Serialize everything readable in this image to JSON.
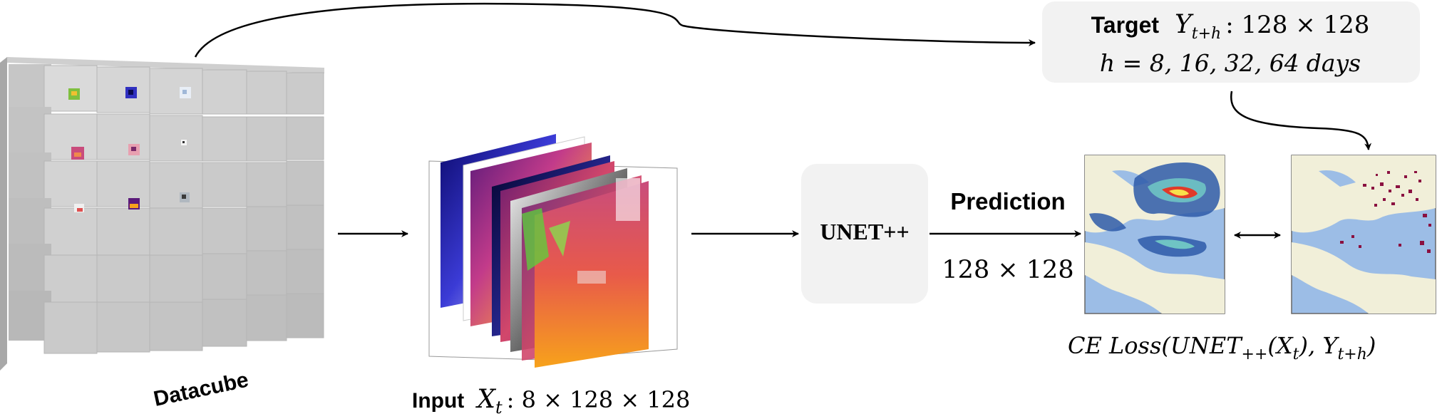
{
  "datacube": {
    "label": "Datacube"
  },
  "input": {
    "label": "Input",
    "symbol": "X",
    "subscript": "t",
    "dims": ": 8 × 128 × 128"
  },
  "model": {
    "label": "UNET++"
  },
  "prediction": {
    "label": "Prediction",
    "dims": "128 × 128"
  },
  "target": {
    "label": "Target",
    "symbol": "Y",
    "subscript": "t+h",
    "dims": ": 128 × 128",
    "horizon_line": "h = 8, 16, 32, 64",
    "horizon_unit": "days"
  },
  "loss": {
    "text_a": "CE Loss(UNET",
    "sub_a": "++",
    "text_b": "(X",
    "sub_b": "t",
    "text_c": "), Y",
    "sub_c": "t+h",
    "text_d": ")"
  },
  "colors": {
    "box_fill": "#f2f2f2",
    "cube_light": "#d9d9d9",
    "cube_mid": "#c3c3c3",
    "cube_dark": "#a8a8a8",
    "map_land": "#f1efd9",
    "map_sea": "#9cbde6",
    "heat_blue": "#2e5aa8",
    "heat_red": "#e03a2a",
    "target_dots": "#8a1040",
    "arrow": "#000000"
  }
}
